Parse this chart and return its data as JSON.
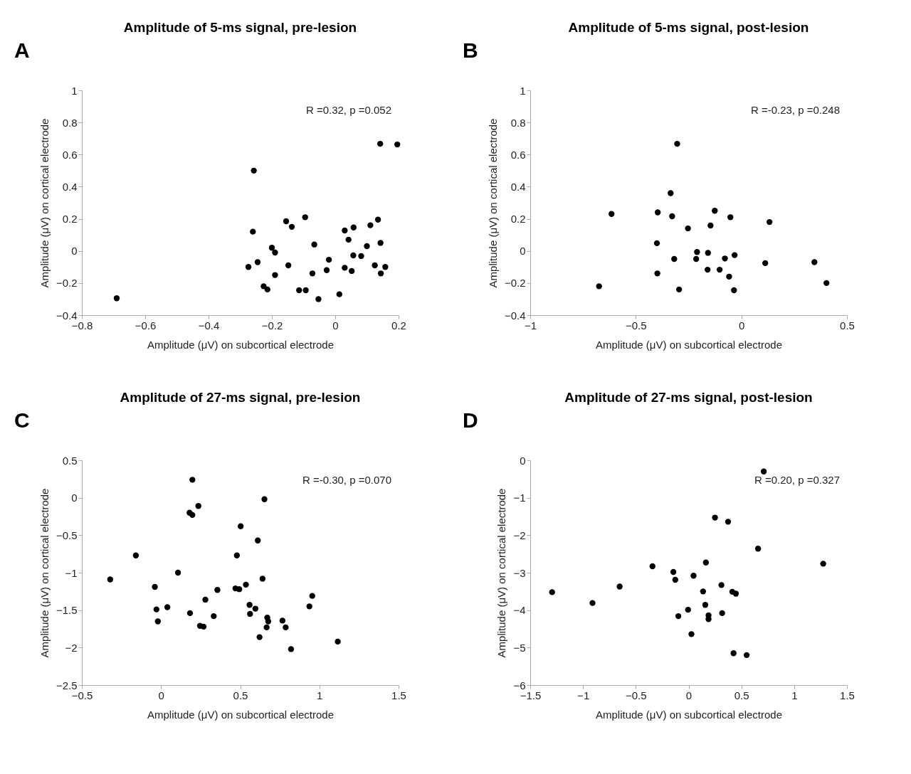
{
  "chart_data": [
    {
      "type": "scatter",
      "title": "Amplitude of 5-ms signal, pre-lesion",
      "xlabel": "Amplitude (μV) on subcortical electrode",
      "ylabel": "Amplitude (μV) on cortical electrode",
      "annotations": [
        "A",
        "R =0.32, p =0.052"
      ],
      "x": [
        -0.69,
        -0.257,
        -0.26,
        -0.274,
        -0.245,
        -0.226,
        -0.214,
        -0.2,
        -0.19,
        -0.19,
        -0.155,
        -0.137,
        -0.148,
        -0.114,
        -0.093,
        -0.095,
        -0.066,
        -0.072,
        -0.053,
        -0.027,
        -0.02,
        0.013,
        0.03,
        0.042,
        0.03,
        0.052,
        0.058,
        0.057,
        0.082,
        0.1,
        0.111,
        0.135,
        0.125,
        0.142,
        0.196,
        0.143,
        0.144,
        0.158
      ],
      "series": [
        {
          "color": "#000000",
          "values": [
            -0.295,
            0.5,
            0.12,
            -0.1,
            -0.07,
            -0.22,
            -0.24,
            0.02,
            -0.01,
            -0.15,
            0.185,
            0.15,
            -0.09,
            -0.245,
            -0.245,
            0.21,
            0.04,
            -0.14,
            -0.3,
            -0.12,
            -0.055,
            -0.27,
            0.127,
            0.07,
            -0.105,
            -0.125,
            0.146,
            -0.028,
            -0.032,
            0.03,
            0.16,
            0.195,
            -0.09,
            0.667,
            0.663,
            0.05,
            -0.14,
            -0.1
          ]
        }
      ],
      "xlim": [
        -0.8,
        0.2
      ],
      "ylim": [
        -0.4,
        1
      ],
      "xticks": [
        -0.8,
        -0.6,
        -0.4,
        -0.2,
        0,
        0.2
      ],
      "yticks": [
        -0.4,
        -0.2,
        0,
        0.2,
        0.4,
        0.6,
        0.8,
        1
      ],
      "marker": "circle"
    },
    {
      "type": "scatter",
      "title": "Amplitude of 5-ms signal, post-lesion",
      "xlabel": "Amplitude (μV) on subcortical electrode",
      "ylabel": "Amplitude (μV) on cortical electrode",
      "annotations": [
        "B",
        "R =-0.23, p =0.248"
      ],
      "x": [
        -0.304,
        -0.335,
        -0.615,
        -0.396,
        -0.328,
        -0.126,
        -0.052,
        0.133,
        -0.253,
        -0.146,
        -0.4,
        -0.21,
        -0.158,
        -0.318,
        -0.214,
        -0.078,
        -0.032,
        0.113,
        0.346,
        -0.398,
        -0.16,
        -0.103,
        -0.058,
        -0.674,
        -0.295,
        -0.035,
        0.403
      ],
      "series": [
        {
          "color": "#000000",
          "values": [
            0.667,
            0.36,
            0.23,
            0.24,
            0.216,
            0.25,
            0.21,
            0.18,
            0.14,
            0.158,
            0.048,
            -0.007,
            -0.012,
            -0.05,
            -0.05,
            -0.047,
            -0.026,
            -0.076,
            -0.07,
            -0.14,
            -0.117,
            -0.117,
            -0.16,
            -0.22,
            -0.24,
            -0.245,
            -0.2
          ]
        }
      ],
      "xlim": [
        -1,
        0.5
      ],
      "ylim": [
        -0.4,
        1
      ],
      "xticks": [
        -1,
        -0.5,
        0,
        0.5
      ],
      "yticks": [
        -0.4,
        -0.2,
        0,
        0.2,
        0.4,
        0.6,
        0.8,
        1
      ],
      "marker": "circle"
    },
    {
      "type": "scatter",
      "title": "Amplitude of 27-ms signal, pre-lesion",
      "xlabel": "Amplitude (μV) on subcortical electrode",
      "ylabel": "Amplitude (μV) on cortical electrode",
      "annotations": [
        "C",
        "R =-0.30, p =0.070"
      ],
      "x": [
        -0.321,
        -0.159,
        -0.039,
        -0.029,
        -0.02,
        0.04,
        0.107,
        0.198,
        0.18,
        0.198,
        0.236,
        0.183,
        0.246,
        0.269,
        0.28,
        0.333,
        0.356,
        0.479,
        0.503,
        0.47,
        0.494,
        0.536,
        0.559,
        0.562,
        0.596,
        0.611,
        0.641,
        0.653,
        0.622,
        0.671,
        0.677,
        0.667,
        0.767,
        0.787,
        0.821,
        0.937,
        0.955,
        1.116
      ],
      "series": [
        {
          "color": "#000000",
          "values": [
            -1.09,
            -0.77,
            -1.19,
            -1.49,
            -1.65,
            -1.46,
            -1.0,
            0.24,
            -0.2,
            -0.23,
            -0.11,
            -1.54,
            -1.71,
            -1.72,
            -1.36,
            -1.58,
            -1.23,
            -0.77,
            -0.38,
            -1.21,
            -1.22,
            -1.16,
            -1.43,
            -1.55,
            -1.48,
            -0.57,
            -1.08,
            -0.02,
            -1.86,
            -1.6,
            -1.65,
            -1.73,
            -1.64,
            -1.73,
            -2.02,
            -1.45,
            -1.31,
            -1.92
          ]
        }
      ],
      "xlim": [
        -0.5,
        1.5
      ],
      "ylim": [
        -2.5,
        0.5
      ],
      "xticks": [
        -0.5,
        0,
        0.5,
        1,
        1.5
      ],
      "yticks": [
        -2.5,
        -2,
        -1.5,
        -1,
        -0.5,
        0,
        0.5
      ],
      "marker": "circle"
    },
    {
      "type": "scatter",
      "title": "Amplitude of 27-ms signal, post-lesion",
      "xlabel": "Amplitude (μV) on subcortical electrode",
      "ylabel": "Amplitude (μV) on cortical electrode",
      "annotations": [
        "D",
        "R =0.20, p =0.327"
      ],
      "x": [
        0.712,
        0.25,
        0.374,
        0.658,
        1.275,
        0.164,
        -0.342,
        -0.144,
        -0.126,
        0.047,
        0.311,
        0.137,
        0.414,
        0.448,
        -1.293,
        -0.91,
        -0.653,
        -0.005,
        -0.097,
        0.158,
        0.189,
        0.189,
        0.318,
        0.027,
        0.426,
        0.55
      ],
      "series": [
        {
          "color": "#000000",
          "values": [
            -0.3,
            -1.53,
            -1.64,
            -2.36,
            -2.76,
            -2.73,
            -2.83,
            -2.98,
            -3.19,
            -3.08,
            -3.33,
            -3.5,
            -3.51,
            -3.56,
            -3.52,
            -3.81,
            -3.37,
            -3.99,
            -4.16,
            -3.86,
            -4.14,
            -4.24,
            -4.08,
            -4.64,
            -5.15,
            -5.2
          ]
        }
      ],
      "xlim": [
        -1.5,
        1.5
      ],
      "ylim": [
        -6,
        0
      ],
      "xticks": [
        -1.5,
        -1,
        -0.5,
        0,
        0.5,
        1,
        1.5
      ],
      "yticks": [
        -6,
        -5,
        -4,
        -3,
        -2,
        -1,
        0
      ],
      "marker": "circle"
    }
  ]
}
